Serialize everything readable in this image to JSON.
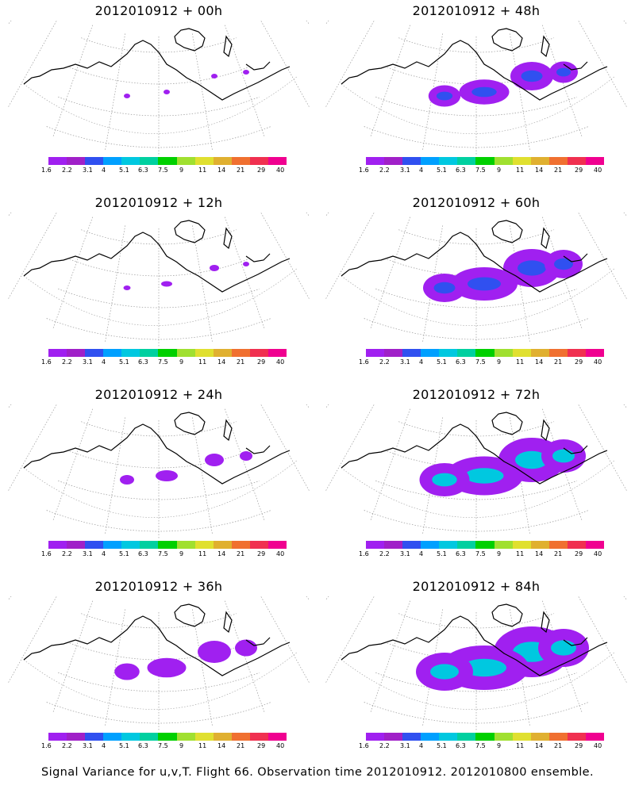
{
  "panels": [
    {
      "title": "2012010912  + 00h",
      "coverage": 0.05
    },
    {
      "title": "2012010912  + 48h",
      "coverage": 0.45
    },
    {
      "title": "2012010912  + 12h",
      "coverage": 0.1
    },
    {
      "title": "2012010912  + 60h",
      "coverage": 0.6
    },
    {
      "title": "2012010912  + 24h",
      "coverage": 0.2
    },
    {
      "title": "2012010912  + 72h",
      "coverage": 0.7
    },
    {
      "title": "2012010912  + 36h",
      "coverage": 0.35
    },
    {
      "title": "2012010912  + 84h",
      "coverage": 0.8
    }
  ],
  "colorbar": {
    "colors": [
      "#a020f0",
      "#a020c8",
      "#3050f0",
      "#00a0ff",
      "#00c8e0",
      "#00d0a0",
      "#00d000",
      "#a0e030",
      "#e0e030",
      "#e0b030",
      "#f07030",
      "#f03050",
      "#f00090"
    ],
    "labels": [
      "1.6",
      "2.2",
      "3.1",
      "4",
      "5.1",
      "6.3",
      "7.5",
      "9",
      "11",
      "14",
      "21",
      "29",
      "40"
    ]
  },
  "footer": "Signal Variance for u,v,T. Flight 66. Observation time 2012010912. 2012010800 ensemble."
}
